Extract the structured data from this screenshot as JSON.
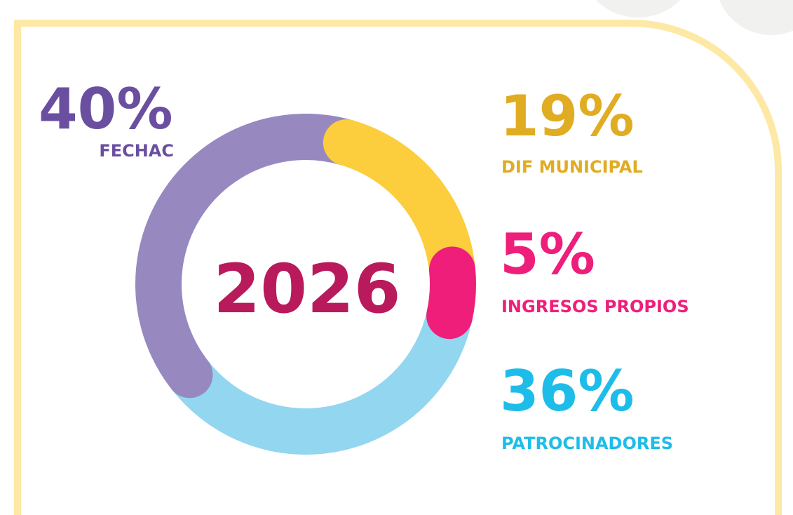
{
  "chart_data": {
    "type": "donut",
    "center_label": "2026",
    "categories": [
      "FECHAC",
      "DIF MUNICIPAL",
      "INGRESOS PROPIOS",
      "PATROCINADORES"
    ],
    "values": [
      40,
      19,
      5,
      36
    ],
    "value_labels": [
      "40%",
      "19%",
      "5%",
      "36%"
    ],
    "colors": [
      "#9789c0",
      "#fccd3c",
      "#ee1e7a",
      "#93d6f0"
    ],
    "label_colors": [
      "#6a4fa0",
      "#e0ac22",
      "#ee1e7a",
      "#1ebde9"
    ]
  }
}
